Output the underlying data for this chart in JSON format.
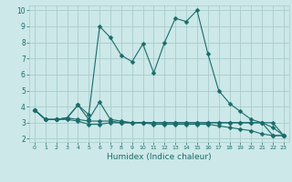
{
  "bg_color": "#cce8e8",
  "grid_color": "#aacccc",
  "line_color": "#1a6b6b",
  "xlabel": "Humidex (Indice chaleur)",
  "xlim": [
    -0.5,
    23.5
  ],
  "ylim": [
    1.8,
    10.3
  ],
  "yticks": [
    2,
    3,
    4,
    5,
    6,
    7,
    8,
    9,
    10
  ],
  "xticks": [
    0,
    1,
    2,
    3,
    4,
    5,
    6,
    7,
    8,
    9,
    10,
    11,
    12,
    13,
    14,
    15,
    16,
    17,
    18,
    19,
    20,
    21,
    22,
    23
  ],
  "series1_x": [
    0,
    1,
    2,
    3,
    4,
    5,
    6,
    7,
    8,
    9,
    10,
    11,
    12,
    13,
    14,
    15,
    16,
    17,
    18,
    19,
    20,
    21,
    22,
    23
  ],
  "series1_y": [
    3.8,
    3.2,
    3.2,
    3.3,
    4.1,
    3.5,
    9.0,
    8.3,
    7.2,
    6.8,
    7.9,
    6.1,
    8.0,
    9.5,
    9.3,
    10.0,
    7.3,
    5.0,
    4.2,
    3.7,
    3.2,
    3.0,
    2.2,
    2.2
  ],
  "series2_x": [
    0,
    1,
    2,
    3,
    4,
    5,
    6,
    7,
    8,
    9,
    10,
    11,
    12,
    13,
    14,
    15,
    16,
    17,
    18,
    19,
    20,
    21,
    22,
    23
  ],
  "series2_y": [
    3.8,
    3.2,
    3.2,
    3.3,
    4.1,
    3.2,
    4.3,
    3.2,
    3.1,
    3.0,
    3.0,
    3.0,
    3.0,
    3.0,
    3.0,
    3.0,
    3.0,
    3.0,
    3.0,
    3.0,
    3.0,
    3.0,
    2.7,
    2.2
  ],
  "series3_x": [
    0,
    1,
    2,
    3,
    4,
    5,
    6,
    7,
    8,
    9,
    10,
    11,
    12,
    13,
    14,
    15,
    16,
    17,
    18,
    19,
    20,
    21,
    22,
    23
  ],
  "series3_y": [
    3.8,
    3.2,
    3.2,
    3.3,
    3.2,
    3.1,
    3.1,
    3.1,
    3.0,
    3.0,
    3.0,
    3.0,
    3.0,
    3.0,
    3.0,
    3.0,
    3.0,
    3.0,
    3.0,
    3.0,
    3.0,
    3.0,
    3.0,
    2.2
  ],
  "series4_x": [
    0,
    1,
    2,
    3,
    4,
    5,
    6,
    7,
    8,
    9,
    10,
    11,
    12,
    13,
    14,
    15,
    16,
    17,
    18,
    19,
    20,
    21,
    22,
    23
  ],
  "series4_y": [
    3.8,
    3.2,
    3.2,
    3.2,
    3.1,
    2.9,
    2.9,
    3.0,
    3.0,
    3.0,
    3.0,
    2.9,
    2.9,
    2.9,
    2.9,
    2.9,
    2.9,
    2.8,
    2.7,
    2.6,
    2.5,
    2.3,
    2.2,
    2.2
  ],
  "markersize": 2.5,
  "linewidth": 0.8
}
